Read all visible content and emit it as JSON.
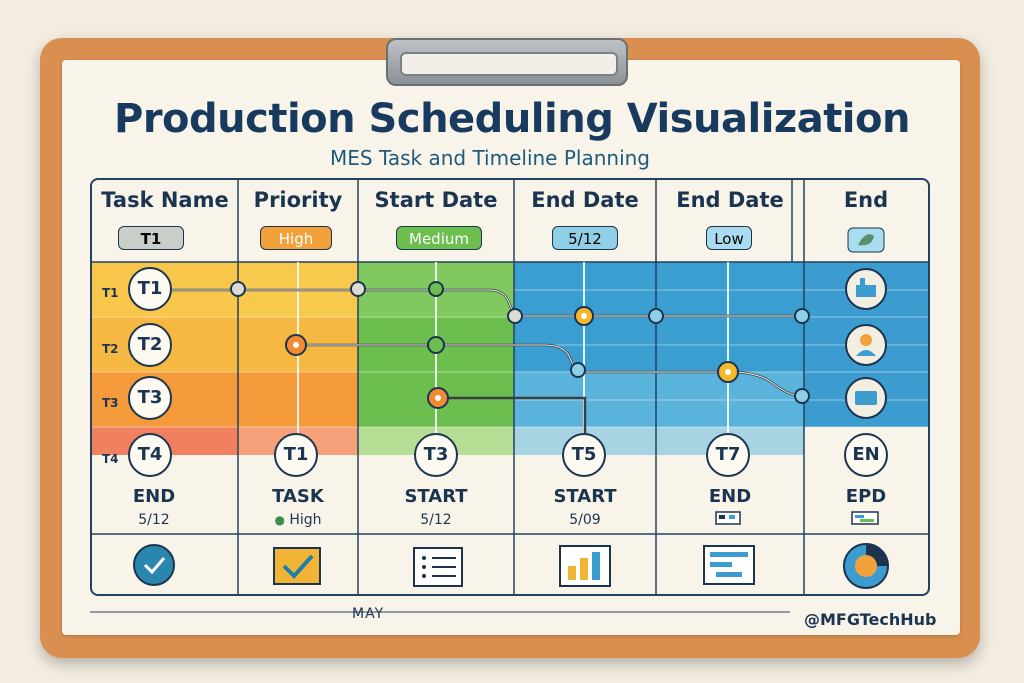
{
  "title": "Production Scheduling Visualization",
  "subtitle": "MES Task and Timeline Planning",
  "headers": [
    "Task Name",
    "Priority",
    "Start Date",
    "End Date",
    "End Date",
    "End"
  ],
  "header_pills": [
    {
      "text": "T1",
      "bg": "#c9cfc8"
    },
    {
      "text": "High",
      "bg": "#f2a13b"
    },
    {
      "text": "Medium",
      "bg": "#6cbf4e"
    },
    {
      "text": "5/12",
      "bg": "#8fd0e6"
    },
    {
      "text": "Low",
      "bg": "#a9dcef"
    }
  ],
  "rows": [
    {
      "label": "T1",
      "circle": "T1"
    },
    {
      "label": "T2",
      "circle": "T2"
    },
    {
      "label": "T3",
      "circle": "T3"
    },
    {
      "label": "T4",
      "circle": "T4"
    }
  ],
  "milestones": [
    "T1",
    "T3",
    "T5",
    "T7",
    "EN"
  ],
  "bottom_labels": [
    {
      "title": "END",
      "sub": "5/12"
    },
    {
      "title": "TASK",
      "sub": "High"
    },
    {
      "title": "START",
      "sub": "5/12"
    },
    {
      "title": "START",
      "sub": "5/09"
    },
    {
      "title": "END",
      "sub": ""
    },
    {
      "title": "EPD",
      "sub": ""
    }
  ],
  "footer": {
    "month": "MAY",
    "handle": "@MFGTechHub"
  },
  "colors": {
    "navy": "#1b3550",
    "yellow": "#f7c64a",
    "orange": "#f49a3a",
    "green": "#6cbf4e",
    "blue": "#3a9fd0",
    "red": "#f08060"
  }
}
